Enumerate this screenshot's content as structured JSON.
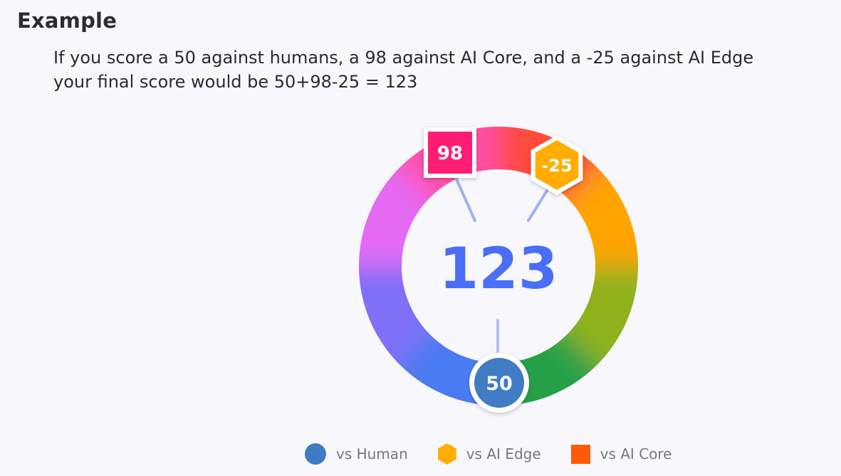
{
  "heading": "Example",
  "description": {
    "line1": "If you score a 50 against humans, a 98 against AI Core, and a -25 against AI Edge",
    "line2": "your final score would be 50+98-25 = 123"
  },
  "score_ring": {
    "total": "123",
    "badges": {
      "ai_core": {
        "value": "98",
        "color": "#ff1f73",
        "shape": "square"
      },
      "ai_edge": {
        "value": "-25",
        "color": "#ffad00",
        "shape": "hexagon"
      },
      "human": {
        "value": "50",
        "color": "#3f7bc4",
        "shape": "circle"
      }
    },
    "total_color": "#4a6ef5"
  },
  "legend": [
    {
      "label": "vs Human",
      "color": "#3f7bc4",
      "shape": "circle-icon"
    },
    {
      "label": "vs AI Edge",
      "color": "#ffad00",
      "shape": "hexagon-icon"
    },
    {
      "label": "vs AI Core",
      "color": "#ff5a0a",
      "shape": "square-icon"
    }
  ]
}
